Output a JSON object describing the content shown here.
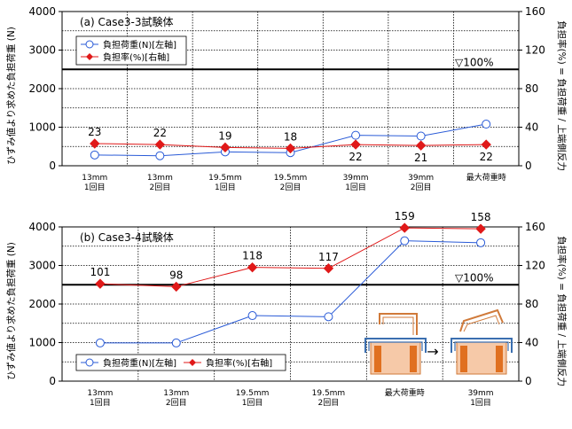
{
  "chart_data": [
    {
      "type": "line",
      "panel_label": "(a) Case3-3試験体",
      "categories": [
        "13mm\n1回目",
        "13mm\n2回目",
        "19.5mm\n1回目",
        "19.5mm\n2回目",
        "39mm\n1回目",
        "39mm\n2回目",
        "最大荷重時"
      ],
      "y_left": {
        "label": "ひずみ値より求めた負担荷重 (N)",
        "ylim": [
          0,
          4000
        ],
        "ticks": [
          0,
          1000,
          2000,
          3000,
          4000
        ]
      },
      "y_right": {
        "label": "負担率(%) = 負担荷重 / 上端側反力",
        "ylim": [
          0,
          160
        ],
        "ticks": [
          0,
          40,
          80,
          120,
          160
        ]
      },
      "series": [
        {
          "name": "負担荷重(N)[左軸]",
          "axis": "left",
          "color": "#2a5bd7",
          "marker": "open-circle",
          "values": [
            280,
            260,
            360,
            340,
            790,
            770,
            1080
          ]
        },
        {
          "name": "負担率(%)[右軸]",
          "axis": "right",
          "color": "#e01919",
          "marker": "diamond",
          "values": [
            23,
            22,
            19,
            18,
            22,
            21,
            22
          ]
        }
      ],
      "data_labels": [
        "23",
        "22",
        "19",
        "18",
        "22",
        "21",
        "22"
      ],
      "reference": {
        "value": 100,
        "axis": "right",
        "label": "▽100%"
      },
      "grid": true,
      "legend": "top-left"
    },
    {
      "type": "line",
      "panel_label": "(b) Case3-4試験体",
      "categories": [
        "13mm\n1回目",
        "13mm\n2回目",
        "19.5mm\n1回目",
        "19.5mm\n2回目",
        "最大荷重時",
        "39mm\n1回目"
      ],
      "y_left": {
        "label": "ひずみ値より求めた負担荷重 (N)",
        "ylim": [
          0,
          4000
        ],
        "ticks": [
          0,
          1000,
          2000,
          3000,
          4000
        ]
      },
      "y_right": {
        "label": "負担率(%) = 負担荷重 / 上端側反力",
        "ylim": [
          0,
          160
        ],
        "ticks": [
          0,
          40,
          80,
          120,
          160
        ]
      },
      "series": [
        {
          "name": "負担荷重(N)[左軸]",
          "axis": "left",
          "color": "#2a5bd7",
          "marker": "open-circle",
          "values": [
            990,
            990,
            1700,
            1670,
            3640,
            3590
          ]
        },
        {
          "name": "負担率(%)[右軸]",
          "axis": "right",
          "color": "#e01919",
          "marker": "diamond",
          "values": [
            101,
            98,
            118,
            117,
            159,
            158
          ]
        }
      ],
      "data_labels": [
        "101",
        "98",
        "118",
        "117",
        "159",
        "158"
      ],
      "reference": {
        "value": 100,
        "axis": "right",
        "label": "▽100%"
      },
      "grid": true,
      "legend": "bottom-left",
      "inset_illustration": {
        "arrow": "→"
      }
    }
  ]
}
